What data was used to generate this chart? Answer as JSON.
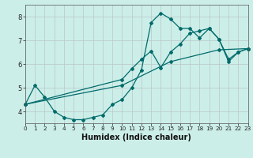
{
  "xlabel": "Humidex (Indice chaleur)",
  "bg_color": "#cceee8",
  "line_color": "#006b6b",
  "grid_color": "#b8c8c8",
  "xlim": [
    0,
    23
  ],
  "ylim": [
    3.5,
    8.5
  ],
  "yticks": [
    4,
    5,
    6,
    7,
    8
  ],
  "xticks": [
    0,
    1,
    2,
    3,
    4,
    5,
    6,
    7,
    8,
    9,
    10,
    11,
    12,
    13,
    14,
    15,
    16,
    17,
    18,
    19,
    20,
    21,
    22,
    23
  ],
  "series1_x": [
    0,
    1,
    2,
    3,
    4,
    5,
    6,
    7,
    8,
    9,
    10,
    11,
    12,
    13,
    14,
    15,
    16,
    17,
    18,
    19,
    20,
    21,
    22,
    23
  ],
  "series1_y": [
    4.3,
    5.1,
    4.6,
    4.0,
    3.75,
    3.65,
    3.65,
    3.75,
    3.85,
    4.3,
    4.5,
    5.0,
    5.75,
    7.75,
    8.15,
    7.9,
    7.5,
    7.5,
    7.1,
    7.5,
    7.05,
    6.1,
    6.5,
    6.65
  ],
  "series2_x": [
    0,
    10,
    11,
    12,
    13,
    14,
    15,
    16,
    17,
    18,
    19,
    20,
    21,
    22,
    23
  ],
  "series2_y": [
    4.3,
    5.35,
    5.8,
    6.2,
    6.55,
    5.85,
    6.5,
    6.85,
    7.3,
    7.4,
    7.5,
    7.05,
    6.2,
    6.5,
    6.65
  ],
  "series3_x": [
    0,
    10,
    15,
    20,
    23
  ],
  "series3_y": [
    4.3,
    5.1,
    6.1,
    6.6,
    6.65
  ]
}
